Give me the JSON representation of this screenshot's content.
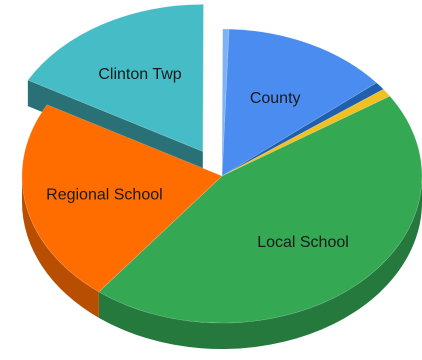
{
  "chart_data": {
    "type": "pie",
    "style": "3d-exploded",
    "slices": [
      {
        "label": "County",
        "value": 13.5,
        "color": "#4a8cf0"
      },
      {
        "label": "",
        "value": 0.9,
        "color": "#1f5fae"
      },
      {
        "label": "",
        "value": 0.9,
        "color": "#f2c021"
      },
      {
        "label": "Local School",
        "value": 44.7,
        "color": "#34a853"
      },
      {
        "label": "Regional School",
        "value": 22.5,
        "color": "#ff6d01"
      },
      {
        "label": "Clinton Twp",
        "value": 17.0,
        "color": "#46bdc6",
        "exploded": true
      },
      {
        "label": "",
        "value": 0.5,
        "color": "#7fb2f5"
      }
    ]
  }
}
